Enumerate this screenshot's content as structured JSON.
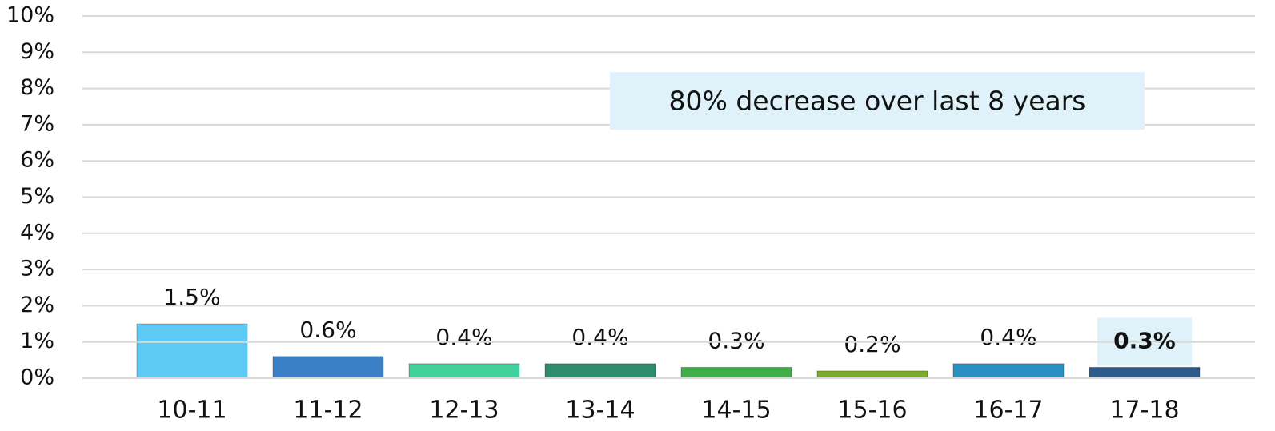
{
  "chart_data": {
    "type": "bar",
    "annotation": "80% decrease over last 8 years",
    "categories": [
      "10-11",
      "11-12",
      "12-13",
      "13-14",
      "14-15",
      "15-16",
      "16-17",
      "17-18"
    ],
    "values": [
      1.5,
      0.6,
      0.4,
      0.4,
      0.3,
      0.2,
      0.4,
      0.3
    ],
    "value_labels": [
      "1.5%",
      "0.6%",
      "0.4%",
      "0.4%",
      "0.3%",
      "0.2%",
      "0.4%",
      "0.3%"
    ],
    "colors": [
      "#5ccaf2",
      "#3b80c6",
      "#3fd09c",
      "#2f8c6b",
      "#40ad4b",
      "#7bab2b",
      "#2a90c2",
      "#2f5b8b"
    ],
    "ylim": [
      0,
      10
    ],
    "yticks": [
      {
        "value": 0,
        "label": "0%"
      },
      {
        "value": 1,
        "label": "1%"
      },
      {
        "value": 2,
        "label": "2%"
      },
      {
        "value": 3,
        "label": "3%"
      },
      {
        "value": 4,
        "label": "4%"
      },
      {
        "value": 5,
        "label": "5%"
      },
      {
        "value": 6,
        "label": "6%"
      },
      {
        "value": 7,
        "label": "7%"
      },
      {
        "value": 8,
        "label": "8%"
      },
      {
        "value": 9,
        "label": "9%"
      },
      {
        "value": 10,
        "label": "10%"
      }
    ],
    "grid": true
  }
}
